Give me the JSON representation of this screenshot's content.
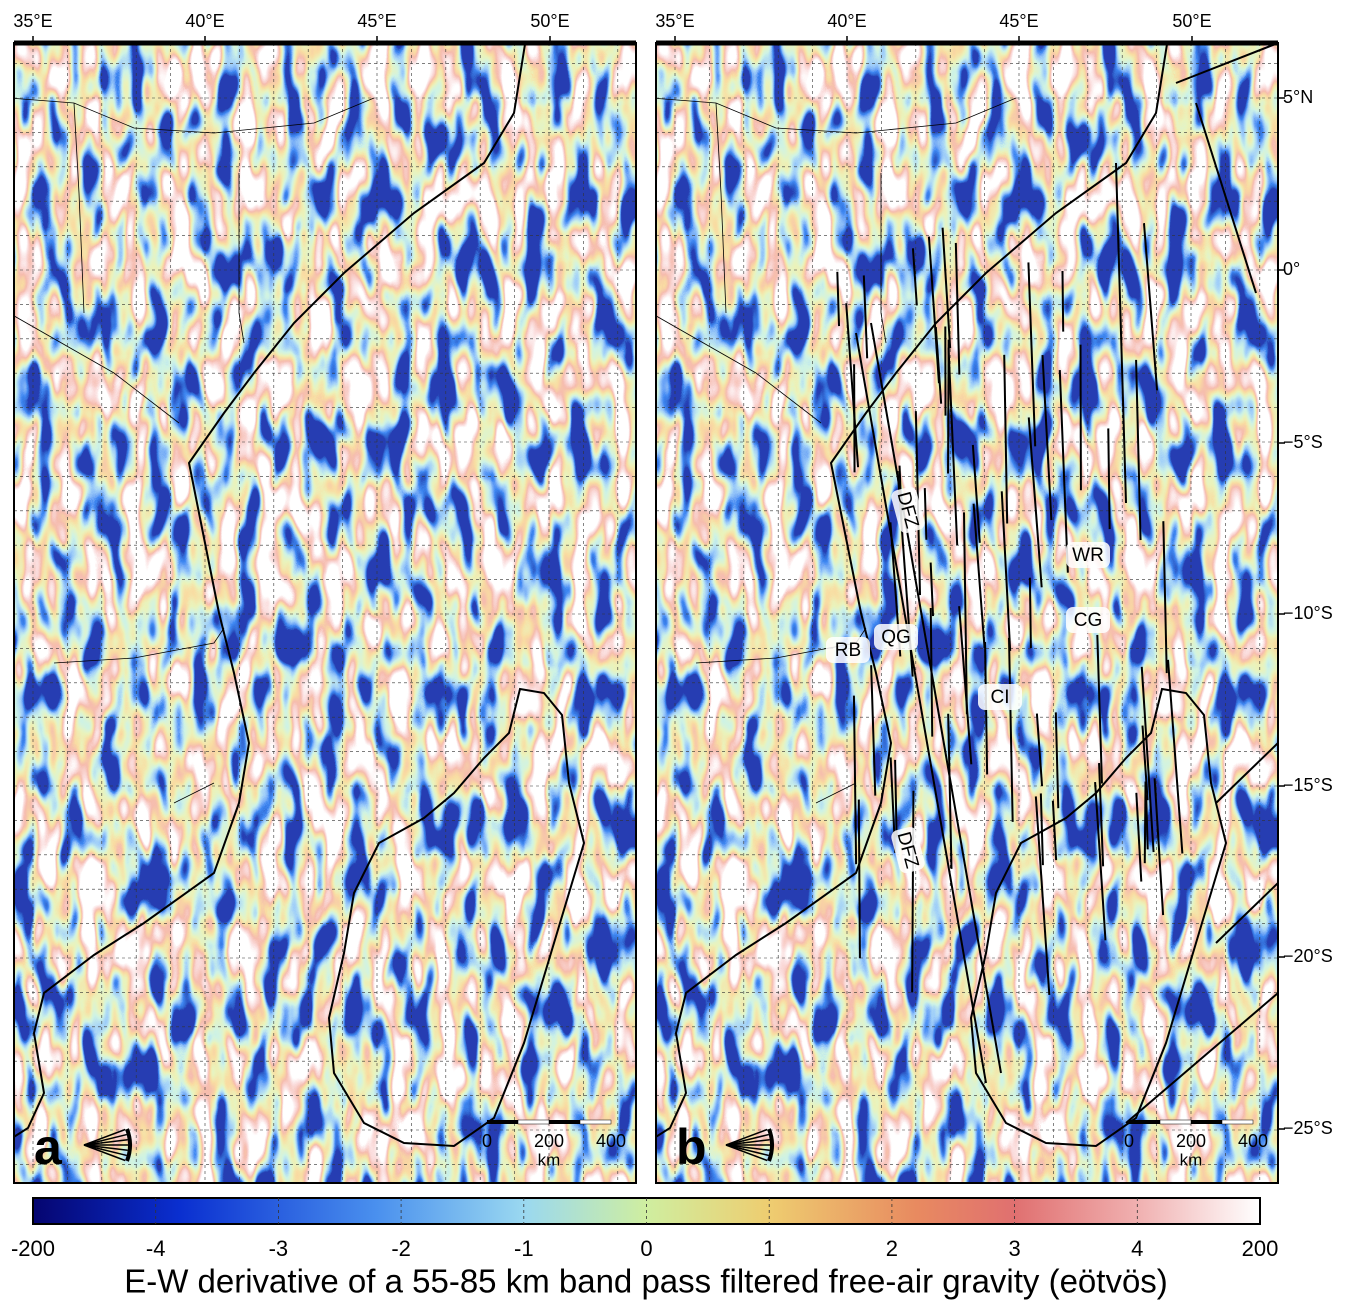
{
  "panels": [
    {
      "label": "a",
      "lon_labels": [
        "35°E",
        "40°E",
        "45°E",
        "50°E"
      ],
      "scale_bar": {
        "labels": [
          "0",
          "200",
          "400"
        ],
        "unit": "km"
      }
    },
    {
      "label": "b",
      "lon_labels": [
        "35°E",
        "40°E",
        "45°E",
        "50°E"
      ],
      "scale_bar": {
        "labels": [
          "0",
          "200",
          "400"
        ],
        "unit": "km"
      },
      "annotations": [
        "DFZ",
        "DFZ",
        "RB",
        "QG",
        "WR",
        "CG",
        "CI"
      ]
    }
  ],
  "lat_labels": [
    "5°N",
    "0°",
    "−5°S",
    "−10°S",
    "−15°S",
    "−20°S",
    "−25°S"
  ],
  "colorbar": {
    "tick_labels": [
      "-200",
      "-4",
      "-3",
      "-2",
      "-1",
      "0",
      "1",
      "2",
      "3",
      "4",
      "200"
    ],
    "title": "E-W derivative of a 55-85 km band pass filtered free-air gravity (eötvös)"
  }
}
